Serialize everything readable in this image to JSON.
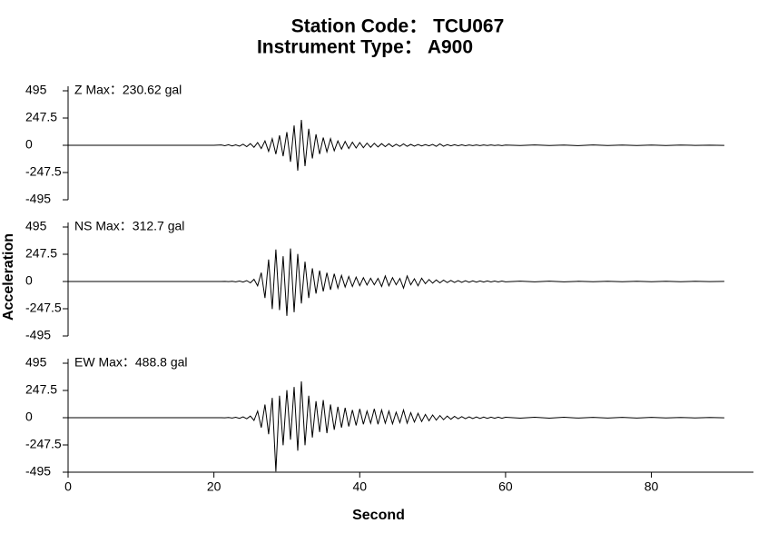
{
  "header": {
    "lines": [
      "Station Code： TCU067",
      "Instrument Type： A900"
    ],
    "color": "#0000ff"
  },
  "chart_data": [
    {
      "type": "line",
      "annotation": "Z  Max：230.62 gal",
      "annotation_color": "#cc0000",
      "color": "#000000",
      "ylim": [
        -495,
        495
      ],
      "yticks": [
        495,
        247.5,
        0,
        -247.5,
        -495
      ],
      "xlim": [
        0,
        94
      ],
      "x": [
        0,
        20,
        21,
        21.5,
        22,
        22.5,
        23,
        23.5,
        24,
        24.5,
        25,
        25.5,
        26,
        26.5,
        27,
        27.5,
        28,
        28.5,
        29,
        29.5,
        30,
        30.5,
        31,
        31.5,
        32,
        32.5,
        33,
        33.5,
        34,
        34.5,
        35,
        35.5,
        36,
        36.5,
        37,
        37.5,
        38,
        38.5,
        39,
        39.5,
        40,
        40.5,
        41,
        41.5,
        42,
        42.5,
        43,
        43.5,
        44,
        44.5,
        45,
        45.5,
        46,
        46.5,
        47,
        47.5,
        48,
        48.5,
        49,
        49.5,
        50,
        50.5,
        51,
        51.5,
        52,
        52.5,
        53,
        53.5,
        54,
        54.5,
        55,
        55.5,
        56,
        56.5,
        57,
        57.5,
        58,
        58.5,
        59,
        59.5,
        60,
        62,
        64,
        66,
        68,
        70,
        72,
        74,
        76,
        78,
        80,
        82,
        84,
        86,
        88,
        90
      ],
      "values": [
        0,
        0,
        3,
        -4,
        5,
        -6,
        4,
        -8,
        10,
        -12,
        15,
        -18,
        25,
        -30,
        40,
        -55,
        60,
        -80,
        90,
        -100,
        120,
        -150,
        180,
        -230,
        230.62,
        -190,
        150,
        -120,
        100,
        -80,
        70,
        -60,
        60,
        -50,
        40,
        -35,
        35,
        -30,
        28,
        -25,
        25,
        -22,
        20,
        -18,
        18,
        -15,
        15,
        -12,
        14,
        -12,
        10,
        -10,
        12,
        -10,
        8,
        -8,
        7,
        -6,
        6,
        -5,
        8,
        -10,
        12,
        -9,
        6,
        -5,
        5,
        -4,
        4,
        -4,
        3,
        -3,
        3,
        -3,
        3,
        -2,
        3,
        -2,
        2,
        -3,
        2,
        -2,
        3,
        -2,
        2,
        -3,
        3,
        -2,
        2,
        -2,
        2,
        -2,
        2,
        -1,
        1,
        -1
      ]
    },
    {
      "type": "line",
      "annotation": "NS  Max：312.7 gal",
      "annotation_color": "#cc0000",
      "color": "#000000",
      "ylim": [
        -495,
        495
      ],
      "yticks": [
        495,
        247.5,
        0,
        -247.5,
        -495
      ],
      "xlim": [
        0,
        94
      ],
      "ylabel": "Acceleration",
      "x": [
        0,
        20,
        21,
        21.5,
        22,
        22.5,
        23,
        23.5,
        24,
        24.5,
        25,
        25.5,
        26,
        26.5,
        27,
        27.5,
        28,
        28.5,
        29,
        29.5,
        30,
        30.5,
        31,
        31.5,
        32,
        32.5,
        33,
        33.5,
        34,
        34.5,
        35,
        35.5,
        36,
        36.5,
        37,
        37.5,
        38,
        38.5,
        39,
        39.5,
        40,
        40.5,
        41,
        41.5,
        42,
        42.5,
        43,
        43.5,
        44,
        44.5,
        45,
        45.5,
        46,
        46.5,
        47,
        47.5,
        48,
        48.5,
        49,
        49.5,
        50,
        50.5,
        51,
        51.5,
        52,
        52.5,
        53,
        53.5,
        54,
        54.5,
        55,
        55.5,
        56,
        56.5,
        57,
        57.5,
        58,
        58.5,
        59,
        59.5,
        60,
        62,
        64,
        66,
        68,
        70,
        72,
        74,
        76,
        78,
        80,
        82,
        84,
        86,
        88,
        90
      ],
      "values": [
        0,
        0,
        0,
        1,
        -1,
        2,
        -3,
        4,
        -5,
        8,
        -12,
        20,
        -40,
        80,
        -150,
        200,
        -250,
        290,
        -260,
        230,
        -312.7,
        300,
        -280,
        250,
        -200,
        180,
        -150,
        120,
        -110,
        100,
        -90,
        80,
        -75,
        70,
        -60,
        55,
        -50,
        45,
        -45,
        40,
        -38,
        35,
        -32,
        30,
        -30,
        28,
        -45,
        50,
        -40,
        35,
        -30,
        28,
        -60,
        50,
        -30,
        25,
        -40,
        30,
        -20,
        18,
        -15,
        14,
        -12,
        12,
        -10,
        10,
        -9,
        8,
        -8,
        7,
        -7,
        6,
        -6,
        5,
        -5,
        5,
        -4,
        4,
        -4,
        4,
        -3,
        3,
        -3,
        3,
        -3,
        2,
        -2,
        2,
        -2,
        2,
        -2,
        2,
        -2,
        2,
        -1,
        1
      ]
    },
    {
      "type": "line",
      "annotation": "EW  Max：488.8 gal",
      "annotation_color": "#cc0000",
      "color": "#000000",
      "ylim": [
        -495,
        495
      ],
      "yticks": [
        495,
        247.5,
        0,
        -247.5,
        -495
      ],
      "xlim": [
        0,
        94
      ],
      "xticks": [
        0,
        20,
        40,
        60,
        80
      ],
      "xlabel": "Second",
      "x": [
        0,
        20,
        21,
        21.5,
        22,
        22.5,
        23,
        23.5,
        24,
        24.5,
        25,
        25.5,
        26,
        26.5,
        27,
        27.5,
        28,
        28.5,
        29,
        29.5,
        30,
        30.5,
        31,
        31.5,
        32,
        32.5,
        33,
        33.5,
        34,
        34.5,
        35,
        35.5,
        36,
        36.5,
        37,
        37.5,
        38,
        38.5,
        39,
        39.5,
        40,
        40.5,
        41,
        41.5,
        42,
        42.5,
        43,
        43.5,
        44,
        44.5,
        45,
        45.5,
        46,
        46.5,
        47,
        47.5,
        48,
        48.5,
        49,
        49.5,
        50,
        50.5,
        51,
        51.5,
        52,
        52.5,
        53,
        53.5,
        54,
        54.5,
        55,
        55.5,
        56,
        56.5,
        57,
        57.5,
        58,
        58.5,
        59,
        59.5,
        60,
        62,
        64,
        66,
        68,
        70,
        72,
        74,
        76,
        78,
        80,
        82,
        84,
        86,
        88,
        90
      ],
      "values": [
        0,
        0,
        0,
        -1,
        2,
        -3,
        4,
        -6,
        8,
        -10,
        15,
        -25,
        60,
        -90,
        120,
        -150,
        180,
        -488.8,
        200,
        -250,
        250,
        -200,
        280,
        -300,
        330,
        -250,
        200,
        -180,
        150,
        -130,
        160,
        -140,
        120,
        -110,
        100,
        -90,
        90,
        -80,
        70,
        -70,
        80,
        -60,
        60,
        -50,
        80,
        -60,
        70,
        -50,
        60,
        -55,
        50,
        -45,
        70,
        -50,
        45,
        -40,
        40,
        -35,
        30,
        -28,
        25,
        -22,
        20,
        -18,
        15,
        -14,
        12,
        -10,
        10,
        -9,
        8,
        -8,
        7,
        -7,
        6,
        -6,
        5,
        -5,
        5,
        -5,
        4,
        -4,
        4,
        -4,
        4,
        -3,
        3,
        -3,
        3,
        -3,
        3,
        -2,
        2,
        -2,
        2,
        -1
      ]
    }
  ]
}
